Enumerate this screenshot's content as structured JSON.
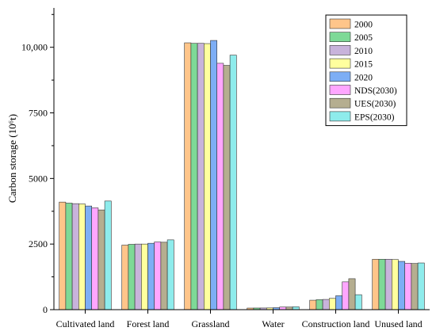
{
  "chart_data": {
    "type": "bar",
    "title": "",
    "xlabel": "",
    "ylabel": "Carbon storage (10⁶t)",
    "ylim": [
      0,
      11500
    ],
    "y_ticks": [
      0,
      2500,
      5000,
      7500,
      10000
    ],
    "y_tick_labels": [
      "0",
      "2500",
      "5000",
      "7500",
      "10,000"
    ],
    "grid": false,
    "legend_position": "top-right",
    "categories": [
      "Cultivated land",
      "Forest land",
      "Grassland",
      "Water",
      "Construction land",
      "Unused land"
    ],
    "series": [
      {
        "name": "2000",
        "color": "#FFC58A",
        "values": [
          4100,
          2460,
          10170,
          60,
          360,
          1920
        ]
      },
      {
        "name": "2005",
        "color": "#7ED997",
        "values": [
          4060,
          2490,
          10150,
          62,
          380,
          1920
        ]
      },
      {
        "name": "2010",
        "color": "#C8B3DB",
        "values": [
          4040,
          2500,
          10150,
          63,
          390,
          1920
        ]
      },
      {
        "name": "2015",
        "color": "#FFFF9E",
        "values": [
          4030,
          2500,
          10140,
          66,
          430,
          1910
        ]
      },
      {
        "name": "2020",
        "color": "#7DAEF5",
        "values": [
          3950,
          2530,
          10260,
          75,
          530,
          1840
        ]
      },
      {
        "name": "NDS(2030)",
        "color": "#FFA6FF",
        "values": [
          3880,
          2580,
          9390,
          100,
          1060,
          1770
        ]
      },
      {
        "name": "UES(2030)",
        "color": "#B5AE90",
        "values": [
          3800,
          2570,
          9310,
          100,
          1180,
          1760
        ]
      },
      {
        "name": "EPS(2030)",
        "color": "#8EECEC",
        "values": [
          4140,
          2660,
          9700,
          110,
          570,
          1780
        ]
      }
    ]
  }
}
